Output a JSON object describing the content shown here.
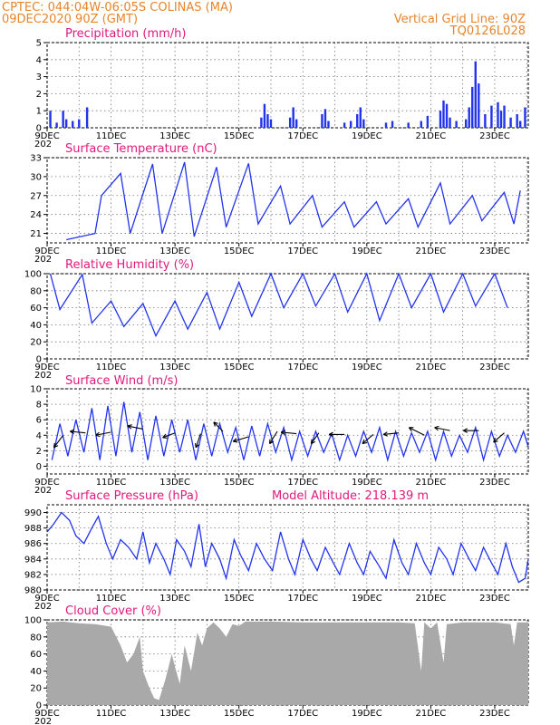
{
  "header": {
    "left_line1": "CPTEC:   044:04W-06:05S   COLINAS (MA)",
    "left_line2": "09DEC2020 90Z (GMT)",
    "right_line1": "Vertical Grid Line: 90Z",
    "right_line2": "TQ0126L028"
  },
  "colors": {
    "header": "#e8842a",
    "title": "#e0197d",
    "series": "#2233ee",
    "cloud": "#a9a9a9"
  },
  "x_axis": {
    "days": [
      "9DEC",
      "11DEC",
      "13DEC",
      "15DEC",
      "17DEC",
      "19DEC",
      "21DEC",
      "23DEC"
    ],
    "year_fragment": "202"
  },
  "chart_data": [
    {
      "type": "bar",
      "title": "Precipitation (mm/h)",
      "ylim": [
        0,
        5
      ],
      "yticks": [
        0,
        1,
        2,
        3,
        4,
        5
      ],
      "grid": true,
      "x_unit": "days since 09DEC 00Z",
      "values": [
        {
          "x": 0.1,
          "y": 1.0
        },
        {
          "x": 0.3,
          "y": 0.3
        },
        {
          "x": 0.5,
          "y": 1.0
        },
        {
          "x": 0.6,
          "y": 0.5
        },
        {
          "x": 0.8,
          "y": 0.4
        },
        {
          "x": 1.0,
          "y": 0.5
        },
        {
          "x": 1.25,
          "y": 1.2
        },
        {
          "x": 6.7,
          "y": 0.6
        },
        {
          "x": 6.8,
          "y": 1.4
        },
        {
          "x": 6.9,
          "y": 0.8
        },
        {
          "x": 7.0,
          "y": 0.5
        },
        {
          "x": 7.6,
          "y": 0.6
        },
        {
          "x": 7.7,
          "y": 1.2
        },
        {
          "x": 7.8,
          "y": 0.5
        },
        {
          "x": 8.6,
          "y": 0.8
        },
        {
          "x": 8.7,
          "y": 1.1
        },
        {
          "x": 8.8,
          "y": 0.4
        },
        {
          "x": 9.3,
          "y": 0.3
        },
        {
          "x": 9.5,
          "y": 0.4
        },
        {
          "x": 9.7,
          "y": 0.8
        },
        {
          "x": 9.8,
          "y": 1.2
        },
        {
          "x": 9.9,
          "y": 0.5
        },
        {
          "x": 10.6,
          "y": 0.3
        },
        {
          "x": 10.8,
          "y": 0.4
        },
        {
          "x": 11.3,
          "y": 0.3
        },
        {
          "x": 11.7,
          "y": 0.4
        },
        {
          "x": 11.9,
          "y": 0.7
        },
        {
          "x": 12.3,
          "y": 1.0
        },
        {
          "x": 12.4,
          "y": 1.6
        },
        {
          "x": 12.5,
          "y": 1.4
        },
        {
          "x": 12.6,
          "y": 0.6
        },
        {
          "x": 12.8,
          "y": 0.4
        },
        {
          "x": 13.1,
          "y": 0.5
        },
        {
          "x": 13.2,
          "y": 1.2
        },
        {
          "x": 13.3,
          "y": 2.4
        },
        {
          "x": 13.4,
          "y": 3.9
        },
        {
          "x": 13.5,
          "y": 2.6
        },
        {
          "x": 13.7,
          "y": 0.8
        },
        {
          "x": 13.9,
          "y": 1.3
        },
        {
          "x": 14.1,
          "y": 1.5
        },
        {
          "x": 14.2,
          "y": 1.0
        },
        {
          "x": 14.3,
          "y": 1.3
        },
        {
          "x": 14.5,
          "y": 0.6
        },
        {
          "x": 14.7,
          "y": 0.8
        },
        {
          "x": 14.8,
          "y": 0.4
        },
        {
          "x": 14.95,
          "y": 1.2
        }
      ]
    },
    {
      "type": "line",
      "title": "Surface Temperature (nC)",
      "ylim": [
        19.5,
        33
      ],
      "yticks": [
        21,
        24,
        27,
        30,
        33
      ],
      "grid": true,
      "x_unit": "days since 09DEC 00Z",
      "daily_extremes": [
        {
          "min_x": 0.6,
          "min_y": 20.0,
          "max_x": 1.7,
          "max_y": 27.0
        },
        {
          "min_x": 1.5,
          "min_y": 21.0,
          "max_x": 2.3,
          "max_y": 30.5
        },
        {
          "min_x": 2.6,
          "min_y": 21.0,
          "max_x": 3.3,
          "max_y": 32.0
        },
        {
          "min_x": 3.6,
          "min_y": 21.0,
          "max_x": 4.3,
          "max_y": 32.3
        },
        {
          "min_x": 4.6,
          "min_y": 20.5,
          "max_x": 5.3,
          "max_y": 31.5
        },
        {
          "min_x": 5.6,
          "min_y": 22.0,
          "max_x": 6.3,
          "max_y": 32.1
        },
        {
          "min_x": 6.6,
          "min_y": 22.5,
          "max_x": 7.3,
          "max_y": 28.5
        },
        {
          "min_x": 7.6,
          "min_y": 22.5,
          "max_x": 8.3,
          "max_y": 27.0
        },
        {
          "min_x": 8.6,
          "min_y": 22.0,
          "max_x": 9.3,
          "max_y": 26.0
        },
        {
          "min_x": 9.6,
          "min_y": 22.0,
          "max_x": 10.3,
          "max_y": 26.0
        },
        {
          "min_x": 10.6,
          "min_y": 22.5,
          "max_x": 11.3,
          "max_y": 26.5
        },
        {
          "min_x": 11.6,
          "min_y": 22.0,
          "max_x": 12.3,
          "max_y": 29.0
        },
        {
          "min_x": 12.6,
          "min_y": 22.5,
          "max_x": 13.3,
          "max_y": 27.0
        },
        {
          "min_x": 13.6,
          "min_y": 23.0,
          "max_x": 14.3,
          "max_y": 27.5
        },
        {
          "min_x": 14.6,
          "min_y": 22.5,
          "max_x": 14.8,
          "max_y": 27.8
        }
      ]
    },
    {
      "type": "line",
      "title": "Relative Humidity (%)",
      "ylim": [
        0,
        100
      ],
      "yticks": [
        0,
        20,
        40,
        60,
        80,
        100
      ],
      "grid": true,
      "x_unit": "days since 09DEC 00Z",
      "daily_extremes": [
        {
          "min_x": 0.4,
          "min_y": 58,
          "max_x": 0.1,
          "max_y": 100
        },
        {
          "min_x": 1.4,
          "min_y": 42,
          "max_x": 1.1,
          "max_y": 99
        },
        {
          "min_x": 2.4,
          "min_y": 38,
          "max_x": 2.0,
          "max_y": 68
        },
        {
          "min_x": 3.4,
          "min_y": 27,
          "max_x": 3.0,
          "max_y": 65
        },
        {
          "min_x": 4.4,
          "min_y": 35,
          "max_x": 4.0,
          "max_y": 68
        },
        {
          "min_x": 5.4,
          "min_y": 35,
          "max_x": 5.0,
          "max_y": 78
        },
        {
          "min_x": 6.4,
          "min_y": 50,
          "max_x": 6.0,
          "max_y": 90
        },
        {
          "min_x": 7.4,
          "min_y": 60,
          "max_x": 7.0,
          "max_y": 100
        },
        {
          "min_x": 8.4,
          "min_y": 62,
          "max_x": 8.0,
          "max_y": 100
        },
        {
          "min_x": 9.4,
          "min_y": 55,
          "max_x": 9.0,
          "max_y": 100
        },
        {
          "min_x": 10.4,
          "min_y": 45,
          "max_x": 10.0,
          "max_y": 100
        },
        {
          "min_x": 11.4,
          "min_y": 60,
          "max_x": 11.0,
          "max_y": 100
        },
        {
          "min_x": 12.4,
          "min_y": 55,
          "max_x": 12.0,
          "max_y": 100
        },
        {
          "min_x": 13.4,
          "min_y": 62,
          "max_x": 13.0,
          "max_y": 100
        },
        {
          "min_x": 14.4,
          "min_y": 60,
          "max_x": 14.0,
          "max_y": 100
        }
      ]
    },
    {
      "type": "line",
      "title": "Surface Wind (m/s)",
      "ylim": [
        -1,
        10
      ],
      "yticks": [
        0,
        2,
        4,
        6,
        8,
        10
      ],
      "grid": true,
      "x_unit": "days since 09DEC 00Z",
      "peaks": [
        5.5,
        6.0,
        7.5,
        7.8,
        8.3,
        7.0,
        6.5,
        6.0,
        6.0,
        5.5,
        5.5,
        5.0,
        5.2,
        5.5,
        5.0,
        4.5,
        4.5,
        4.2,
        4.0,
        4.5,
        5.0,
        4.5,
        4.3,
        4.5,
        4.5,
        4.0,
        5.0,
        4.5,
        4.0,
        4.5
      ],
      "wind_vectors": [
        {
          "x": 0.5,
          "y": 4.0,
          "u": -0.6,
          "v": -0.8
        },
        {
          "x": 1.2,
          "y": 4.3,
          "u": -1.0,
          "v": 0.1
        },
        {
          "x": 2.0,
          "y": 4.4,
          "u": -1.0,
          "v": -0.2
        },
        {
          "x": 3.0,
          "y": 4.8,
          "u": -1.0,
          "v": 0.2
        },
        {
          "x": 4.0,
          "y": 4.3,
          "u": -0.8,
          "v": -0.3
        },
        {
          "x": 4.8,
          "y": 4.2,
          "u": -0.3,
          "v": -0.9
        },
        {
          "x": 5.5,
          "y": 4.5,
          "u": -0.6,
          "v": 0.6
        },
        {
          "x": 6.3,
          "y": 3.8,
          "u": -1.0,
          "v": -0.3
        },
        {
          "x": 7.2,
          "y": 4.5,
          "u": -0.5,
          "v": -0.8
        },
        {
          "x": 7.8,
          "y": 4.2,
          "u": -1.0,
          "v": 0.1
        },
        {
          "x": 8.5,
          "y": 4.3,
          "u": -0.5,
          "v": -0.7
        },
        {
          "x": 9.3,
          "y": 4.1,
          "u": -1.0,
          "v": 0.0
        },
        {
          "x": 10.2,
          "y": 4.1,
          "u": -0.7,
          "v": -0.6
        },
        {
          "x": 11.0,
          "y": 4.3,
          "u": -1.0,
          "v": -0.1
        },
        {
          "x": 11.8,
          "y": 4.0,
          "u": -1.0,
          "v": 0.5
        },
        {
          "x": 12.6,
          "y": 4.6,
          "u": -1.0,
          "v": 0.2
        },
        {
          "x": 13.5,
          "y": 4.6,
          "u": -1.0,
          "v": 0.0
        },
        {
          "x": 14.3,
          "y": 4.3,
          "u": -0.7,
          "v": -0.6
        }
      ]
    },
    {
      "type": "line",
      "title": "Surface Pressure (hPa)",
      "annotation": "Model Altitude: 218.139  m",
      "ylim": [
        980,
        991
      ],
      "yticks": [
        980,
        982,
        984,
        986,
        988,
        990
      ],
      "grid": true,
      "x_unit": "days since 09DEC 00Z",
      "points": [
        [
          0.0,
          987.5
        ],
        [
          0.2,
          988.5
        ],
        [
          0.45,
          990.0
        ],
        [
          0.7,
          989.0
        ],
        [
          0.9,
          987.0
        ],
        [
          1.15,
          986.0
        ],
        [
          1.4,
          988.0
        ],
        [
          1.6,
          989.5
        ],
        [
          1.85,
          986.0
        ],
        [
          2.05,
          984.0
        ],
        [
          2.3,
          986.5
        ],
        [
          2.55,
          985.5
        ],
        [
          2.8,
          984.0
        ],
        [
          3.0,
          987.5
        ],
        [
          3.2,
          983.5
        ],
        [
          3.4,
          986.0
        ],
        [
          3.65,
          984.0
        ],
        [
          3.85,
          982.0
        ],
        [
          4.05,
          986.5
        ],
        [
          4.3,
          985.0
        ],
        [
          4.5,
          983.0
        ],
        [
          4.75,
          988.5
        ],
        [
          4.95,
          983.0
        ],
        [
          5.15,
          986.0
        ],
        [
          5.4,
          984.0
        ],
        [
          5.6,
          981.5
        ],
        [
          5.85,
          986.5
        ],
        [
          6.05,
          984.5
        ],
        [
          6.3,
          982.5
        ],
        [
          6.55,
          986.0
        ],
        [
          6.8,
          984.0
        ],
        [
          7.05,
          982.5
        ],
        [
          7.3,
          987.5
        ],
        [
          7.55,
          984.0
        ],
        [
          7.75,
          982.0
        ],
        [
          8.0,
          986.5
        ],
        [
          8.25,
          984.0
        ],
        [
          8.45,
          982.5
        ],
        [
          8.7,
          985.5
        ],
        [
          8.95,
          983.5
        ],
        [
          9.15,
          982.0
        ],
        [
          9.45,
          986.0
        ],
        [
          9.7,
          983.5
        ],
        [
          9.9,
          982.0
        ],
        [
          10.1,
          985.0
        ],
        [
          10.4,
          983.0
        ],
        [
          10.6,
          981.5
        ],
        [
          10.85,
          986.5
        ],
        [
          11.1,
          983.5
        ],
        [
          11.3,
          982.0
        ],
        [
          11.55,
          986.0
        ],
        [
          11.8,
          983.5
        ],
        [
          12.0,
          982.0
        ],
        [
          12.25,
          985.5
        ],
        [
          12.5,
          984.0
        ],
        [
          12.7,
          982.0
        ],
        [
          12.95,
          986.0
        ],
        [
          13.2,
          984.0
        ],
        [
          13.4,
          982.5
        ],
        [
          13.65,
          985.5
        ],
        [
          13.9,
          983.5
        ],
        [
          14.1,
          982.0
        ],
        [
          14.35,
          986.0
        ],
        [
          14.55,
          983.0
        ],
        [
          14.75,
          981.0
        ],
        [
          14.95,
          981.5
        ],
        [
          15.05,
          984.0
        ]
      ]
    },
    {
      "type": "area",
      "title": "Cloud Cover (%)",
      "ylim": [
        0,
        100
      ],
      "yticks": [
        0,
        20,
        40,
        60,
        80,
        100
      ],
      "grid": true,
      "x_unit": "days since 09DEC 00Z",
      "points": [
        [
          0.0,
          97
        ],
        [
          0.5,
          98
        ],
        [
          1.0,
          96
        ],
        [
          1.5,
          95
        ],
        [
          2.0,
          92
        ],
        [
          2.3,
          70
        ],
        [
          2.5,
          50
        ],
        [
          2.7,
          60
        ],
        [
          2.9,
          80
        ],
        [
          3.0,
          40
        ],
        [
          3.2,
          20
        ],
        [
          3.35,
          8
        ],
        [
          3.5,
          6
        ],
        [
          3.7,
          30
        ],
        [
          3.9,
          60
        ],
        [
          4.0,
          45
        ],
        [
          4.15,
          25
        ],
        [
          4.3,
          70
        ],
        [
          4.5,
          40
        ],
        [
          4.7,
          85
        ],
        [
          4.85,
          70
        ],
        [
          5.0,
          90
        ],
        [
          5.2,
          97
        ],
        [
          5.4,
          90
        ],
        [
          5.6,
          80
        ],
        [
          5.8,
          95
        ],
        [
          6.0,
          93
        ],
        [
          6.2,
          98
        ],
        [
          7.0,
          98
        ],
        [
          8.0,
          97
        ],
        [
          9.0,
          97
        ],
        [
          10.0,
          97
        ],
        [
          11.0,
          97
        ],
        [
          11.5,
          96
        ],
        [
          11.7,
          40
        ],
        [
          11.8,
          97
        ],
        [
          12.0,
          90
        ],
        [
          12.2,
          97
        ],
        [
          12.4,
          50
        ],
        [
          12.5,
          95
        ],
        [
          13.0,
          97
        ],
        [
          14.0,
          97
        ],
        [
          14.5,
          95
        ],
        [
          14.6,
          70
        ],
        [
          14.7,
          97
        ],
        [
          15.05,
          97
        ]
      ]
    }
  ]
}
